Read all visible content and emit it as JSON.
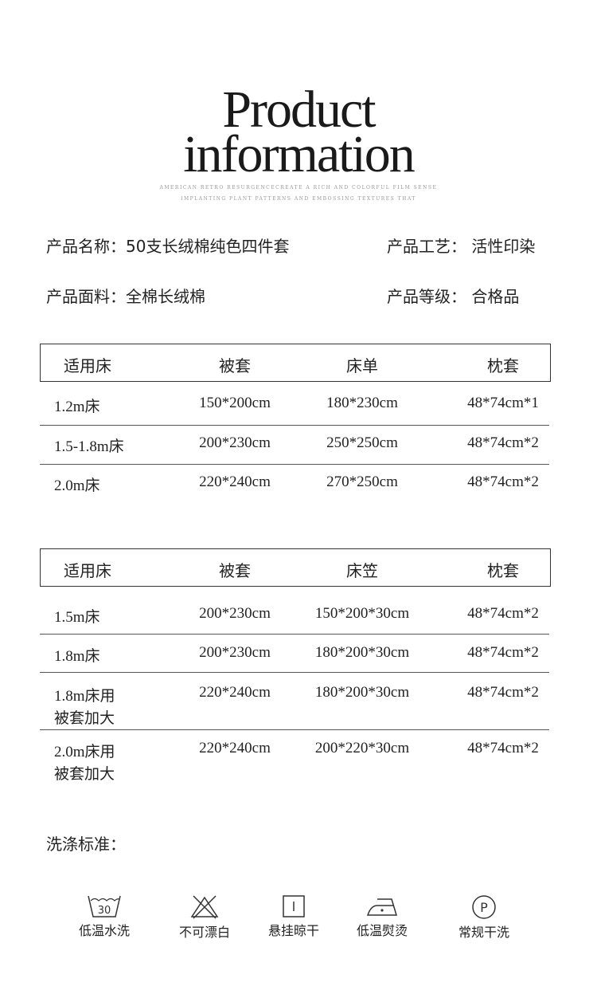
{
  "header": {
    "title_line1": "Product",
    "title_line2": "information",
    "subtitle_line1": "AMERICAN RETRO RESURGENCECREATE A RICH AND COLORFUL FILM SENSE",
    "subtitle_line2": "IMPLANTING PLANT PATTERNS AND EMBOSSING TEXTURES THAT"
  },
  "info": {
    "name": "产品名称：50支长绒棉纯色四件套",
    "craft": "产品工艺：  活性印染",
    "fabric": "产品面料：全棉长绒棉",
    "grade": "产品等级：  合格品"
  },
  "table1": {
    "headers": [
      "适用床",
      "被套",
      "床单",
      "枕套"
    ],
    "rows": [
      [
        "1.2m床",
        "150*200cm",
        "180*230cm",
        "48*74cm*1"
      ],
      [
        "1.5-1.8m床",
        "200*230cm",
        "250*250cm",
        "48*74cm*2"
      ],
      [
        "2.0m床",
        "220*240cm",
        "270*250cm",
        "48*74cm*2"
      ]
    ]
  },
  "table2": {
    "headers": [
      "适用床",
      "被套",
      "床笠",
      "枕套"
    ],
    "rows": [
      [
        [
          "1.5m床"
        ],
        "200*230cm",
        "150*200*30cm",
        "48*74cm*2"
      ],
      [
        [
          "1.8m床"
        ],
        "200*230cm",
        "180*200*30cm",
        "48*74cm*2"
      ],
      [
        [
          "1.8m床用",
          "被套加大"
        ],
        "220*240cm",
        "180*200*30cm",
        "48*74cm*2"
      ],
      [
        [
          "2.0m床用",
          "被套加大"
        ],
        "220*240cm",
        "200*220*30cm",
        "48*74cm*2"
      ]
    ]
  },
  "wash": {
    "title": "洗涤标准：",
    "items": [
      {
        "icon": "wash-30-icon",
        "label": "低温水洗",
        "temp": "30"
      },
      {
        "icon": "no-bleach-icon",
        "label": "不可漂白"
      },
      {
        "icon": "hang-dry-icon",
        "label": "悬挂晾干"
      },
      {
        "icon": "low-iron-icon",
        "label": "低温熨烫"
      },
      {
        "icon": "dry-clean-p-icon",
        "label": "常规干洗",
        "letter": "P"
      }
    ]
  }
}
